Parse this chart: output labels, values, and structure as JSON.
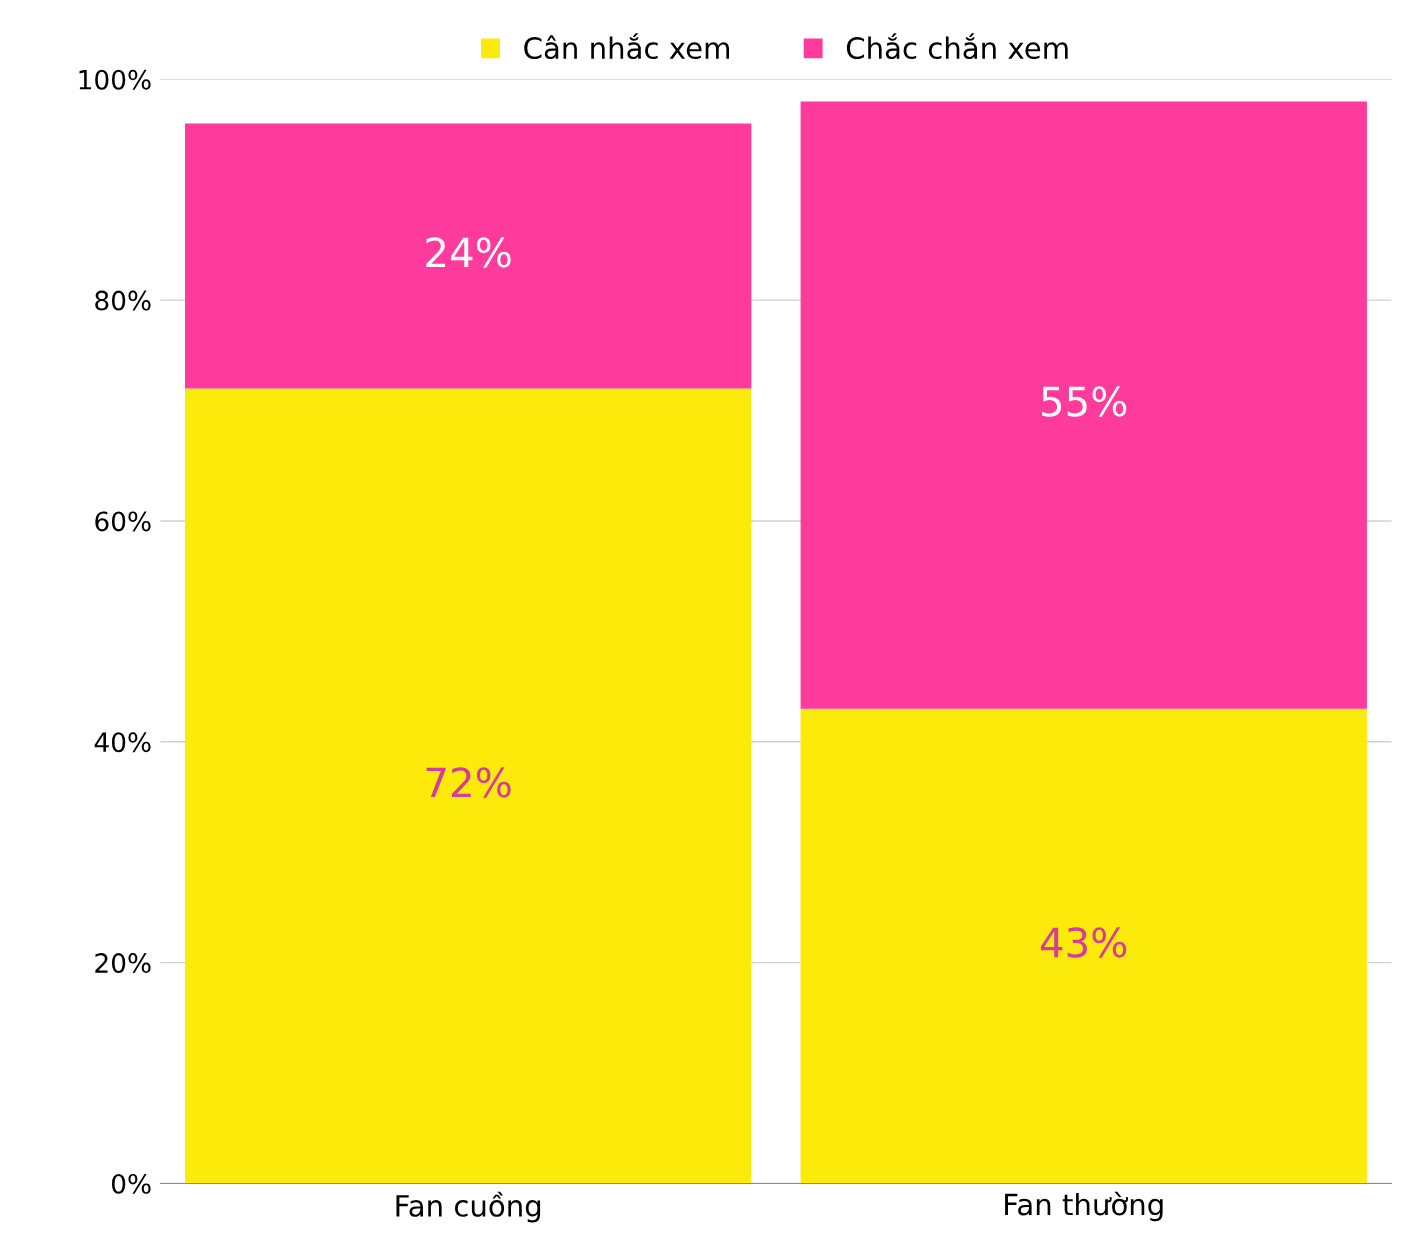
{
  "chart_data": {
    "type": "bar",
    "stacked": true,
    "categories": [
      "Fan cuồng",
      "Fan thường"
    ],
    "series": [
      {
        "name": "Cân nhắc xem",
        "color": "#fcea0b",
        "values": [
          72,
          43
        ],
        "value_labels": [
          "72%",
          "43%"
        ]
      },
      {
        "name": "Chắc chắn xem",
        "color": "#ff3a9d",
        "values": [
          24,
          55
        ],
        "value_labels": [
          "24%",
          "55%"
        ]
      }
    ],
    "ylim": [
      0,
      100
    ],
    "yticks": [
      {
        "value": 0,
        "label": "0%"
      },
      {
        "value": 20,
        "label": "20%"
      },
      {
        "value": 40,
        "label": "40%"
      },
      {
        "value": 60,
        "label": "60%"
      },
      {
        "value": 80,
        "label": "80%"
      },
      {
        "value": 100,
        "label": "100%"
      }
    ],
    "grid": "y",
    "legend": "top"
  }
}
